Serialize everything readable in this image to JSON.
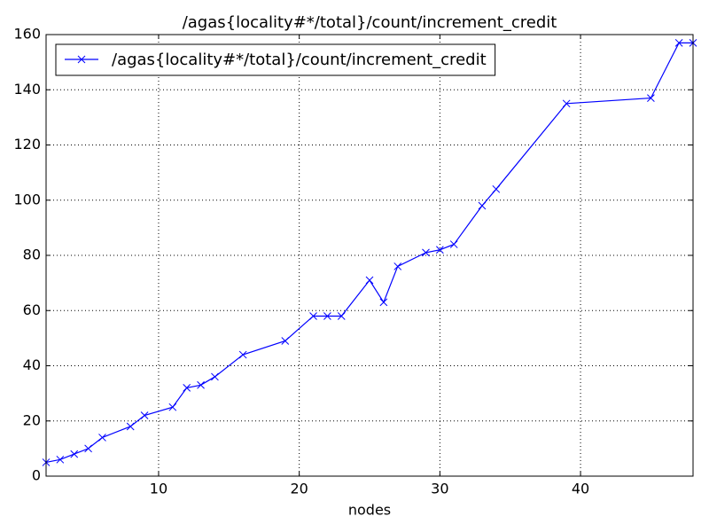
{
  "chart_data": {
    "type": "line",
    "title": "/agas{locality#*/total}/count/increment_credit",
    "xlabel": "nodes",
    "x": [
      2,
      3,
      4,
      5,
      6,
      8,
      9,
      11,
      12,
      13,
      14,
      16,
      19,
      21,
      22,
      23,
      25,
      26,
      27,
      29,
      30,
      31,
      33,
      34,
      39,
      45,
      47,
      48
    ],
    "series": [
      {
        "name": "/agas{locality#*/total}/count/increment_credit",
        "color": "#0000ff",
        "values": [
          5,
          6,
          8,
          10,
          14,
          18,
          22,
          25,
          32,
          33,
          36,
          44,
          49,
          58,
          58,
          58,
          71,
          63,
          76,
          81,
          82,
          84,
          98,
          104,
          135,
          137,
          157,
          157
        ]
      }
    ],
    "xlim": [
      2,
      48
    ],
    "xticks": [
      10,
      20,
      30,
      40
    ],
    "ylim": [
      0,
      160
    ],
    "yticks": [
      0,
      20,
      40,
      60,
      80,
      100,
      120,
      140,
      160
    ],
    "grid": true,
    "legend": "upper left"
  }
}
